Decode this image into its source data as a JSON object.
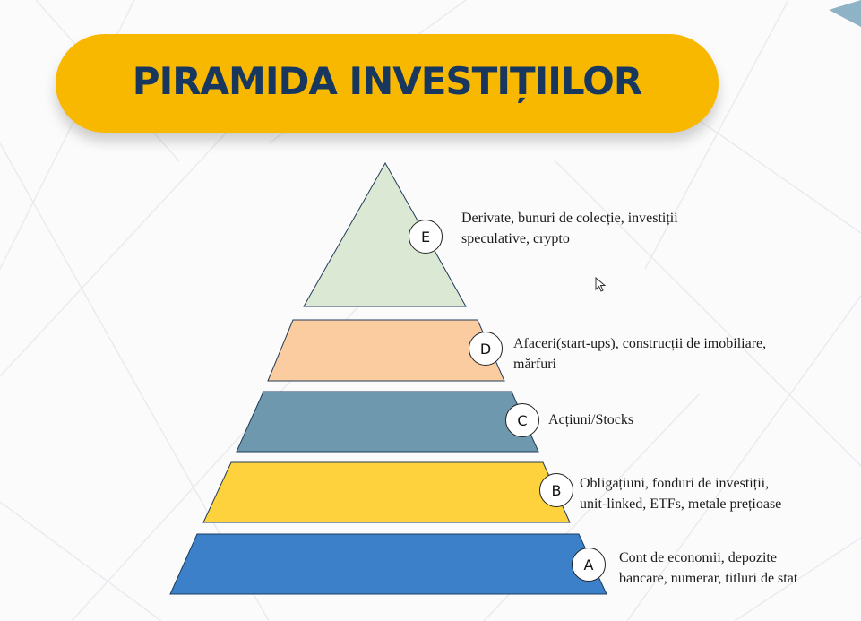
{
  "title": "PIRAMIDA INVESTIȚIILOR",
  "levels": [
    {
      "letter": "E",
      "line1": "Derivate, bunuri de colecție, investiții",
      "line2": "speculative, crypto",
      "color": "#dbe9d4"
    },
    {
      "letter": "D",
      "line1": "Afaceri(start-ups), construcții de imobiliare,",
      "line2": "mărfuri",
      "color": "#fbcc9f"
    },
    {
      "letter": "C",
      "line1": "Acțiuni/Stocks",
      "line2": "",
      "color": "#6e98ad"
    },
    {
      "letter": "B",
      "line1": "Obligațiuni, fonduri de investiții,",
      "line2": "unit-linked, ETFs, metale prețioase",
      "color": "#fdd23c"
    },
    {
      "letter": "A",
      "line1": "Cont de economii, depozite",
      "line2": "bancare, numerar, titluri de stat",
      "color": "#3b80c8"
    }
  ],
  "colors": {
    "banner": "#f9b800",
    "title_text": "#17375e",
    "corner_accent": "#8fb3c6"
  }
}
